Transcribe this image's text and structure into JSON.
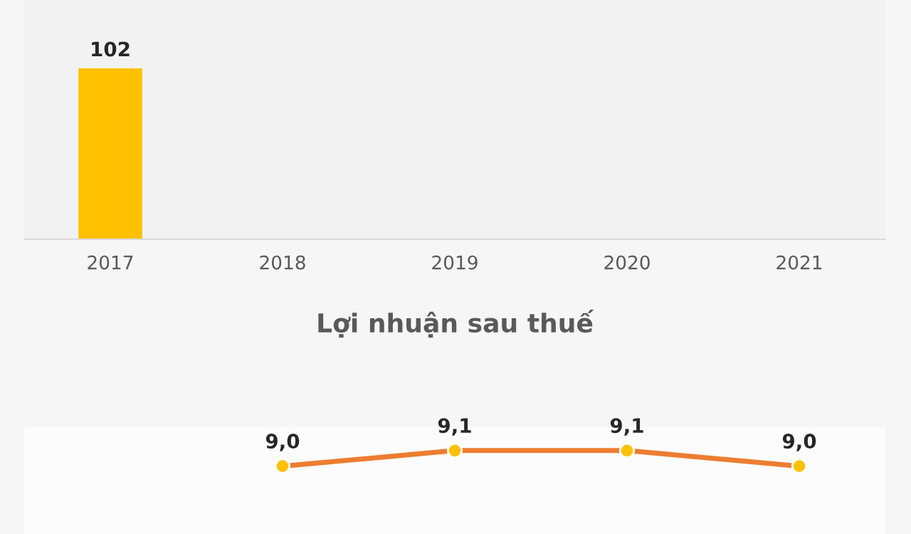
{
  "chart_data": [
    {
      "type": "bar",
      "categories": [
        "2017",
        "2018",
        "2019",
        "2020",
        "2021"
      ],
      "series": [
        {
          "color": "#ffc000",
          "values": [
            102,
            null,
            null,
            null,
            null
          ],
          "value_labels": [
            "102",
            null,
            null,
            null,
            null
          ]
        }
      ],
      "grid": false,
      "legend": false
    },
    {
      "type": "line",
      "title": "Lợi nhuận sau thuế",
      "categories": [
        null,
        null,
        null,
        null,
        null
      ],
      "series": [
        {
          "color": "#ed7d31",
          "values": [
            null,
            9.0,
            9.1,
            9.1,
            9.0
          ],
          "value_labels": [
            null,
            "9,0",
            "9,1",
            "9,1",
            "9,0"
          ]
        }
      ],
      "marker": "circle",
      "line_style": "solid",
      "grid": false,
      "legend": false
    }
  ]
}
